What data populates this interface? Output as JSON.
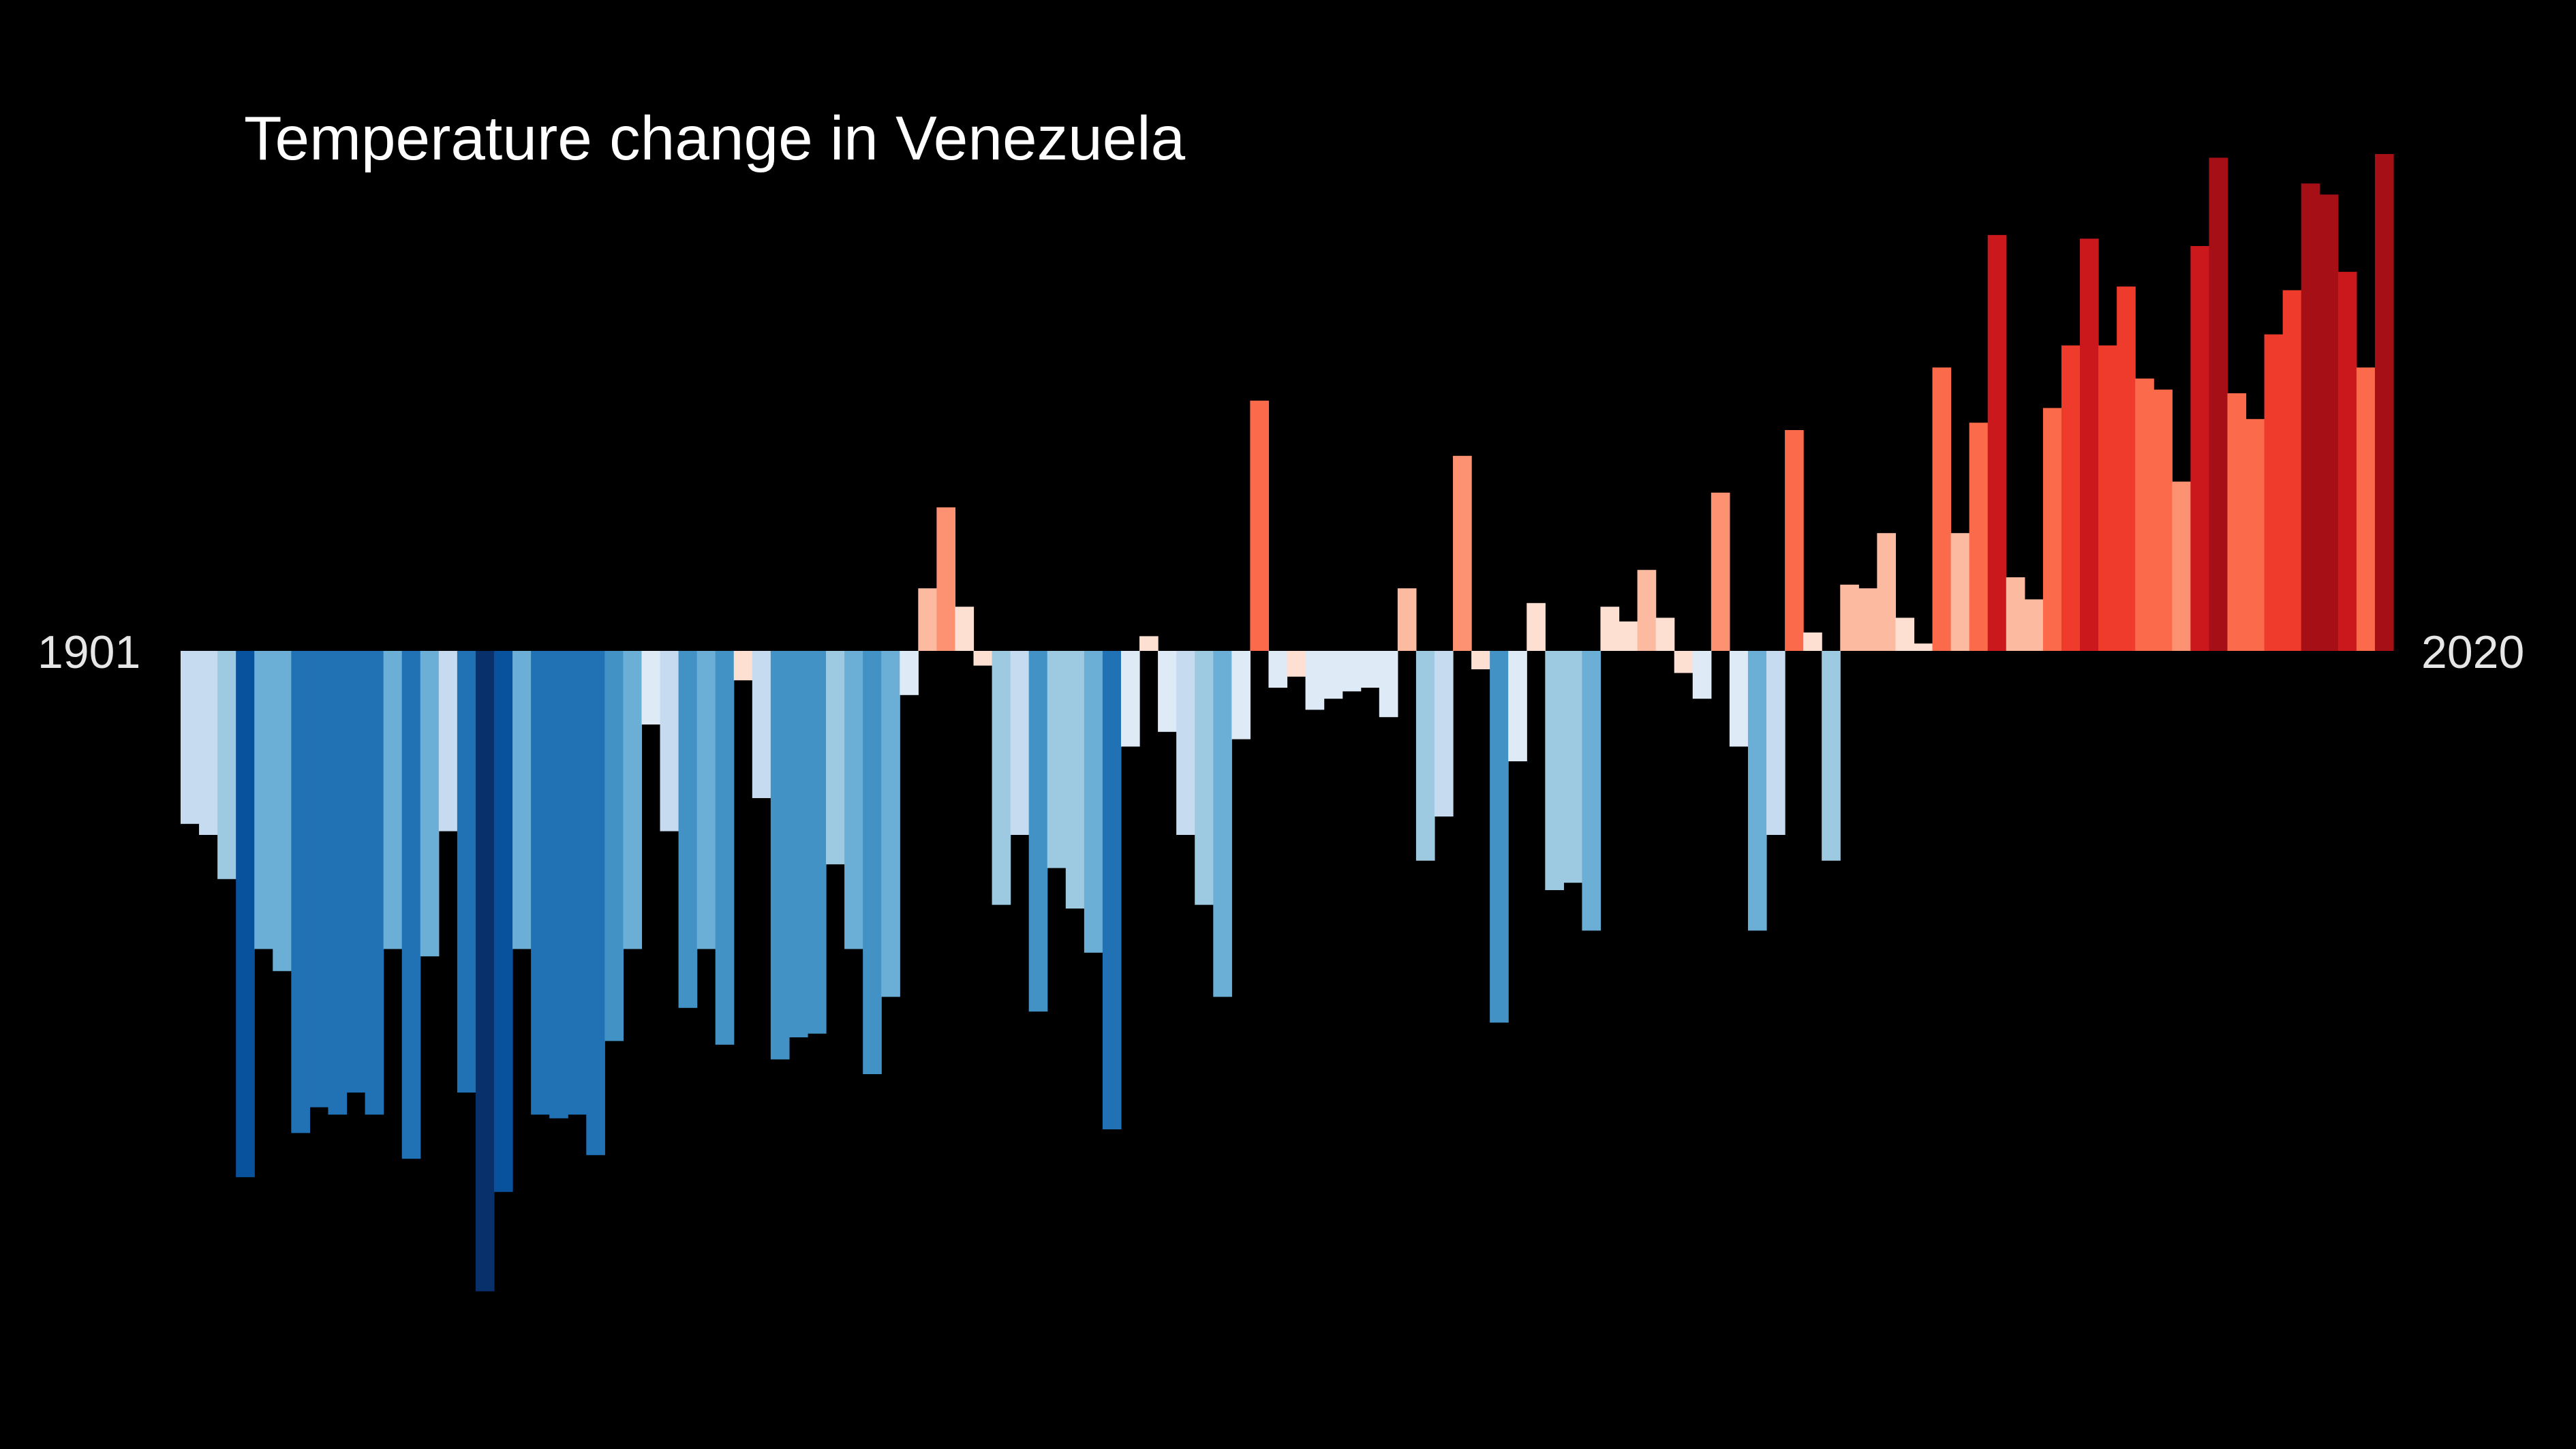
{
  "chart_data": {
    "type": "bar",
    "title": "Temperature change in Venezuela",
    "start_label": "1901",
    "end_label": "2020",
    "x_start": 1901,
    "x_end": 2020,
    "ylim": [
      -1.74,
      1.35
    ],
    "grid": false,
    "legend": "none",
    "values": [
      -0.47,
      -0.5,
      -0.62,
      -1.43,
      -0.81,
      -0.87,
      -1.31,
      -1.24,
      -1.26,
      -1.2,
      -1.26,
      -0.81,
      -1.38,
      -0.83,
      -0.49,
      -1.2,
      -1.74,
      -1.47,
      -0.81,
      -1.26,
      -1.27,
      -1.26,
      -1.37,
      -1.06,
      -0.81,
      -0.2,
      -0.49,
      -0.97,
      -0.81,
      -1.07,
      -0.08,
      -0.4,
      -1.11,
      -1.05,
      -1.04,
      -0.58,
      -0.81,
      -1.15,
      -0.94,
      -0.12,
      0.17,
      0.39,
      0.12,
      -0.04,
      -0.69,
      -0.5,
      -0.98,
      -0.59,
      -0.7,
      -0.82,
      -1.3,
      -0.26,
      0.04,
      -0.22,
      -0.5,
      -0.69,
      -0.94,
      -0.24,
      0.68,
      -0.1,
      -0.07,
      -0.16,
      -0.13,
      -0.11,
      -0.1,
      -0.18,
      0.17,
      -0.57,
      -0.45,
      0.53,
      -0.05,
      -1.01,
      -0.3,
      0.13,
      -0.65,
      -0.63,
      -0.76,
      0.12,
      0.08,
      0.22,
      0.09,
      -0.06,
      -0.13,
      0.43,
      -0.26,
      -0.76,
      -0.5,
      0.6,
      0.05,
      -0.57,
      0.18,
      0.17,
      0.32,
      0.09,
      0.02,
      0.77,
      0.32,
      0.62,
      1.13,
      0.2,
      0.14,
      0.66,
      0.83,
      1.12,
      0.83,
      0.99,
      0.74,
      0.71,
      0.46,
      1.1,
      1.34,
      0.7,
      0.63,
      0.86,
      0.98,
      1.27,
      1.24,
      1.03,
      0.77,
      1.35
    ]
  },
  "colors": {
    "background": "#000000",
    "scale": [
      "#08306b",
      "#08519c",
      "#2171b5",
      "#4292c6",
      "#6baed6",
      "#9ecae1",
      "#c6dbef",
      "#deebf7",
      "#fee0d2",
      "#fcbba1",
      "#fc9272",
      "#fb6a4a",
      "#ef3b2c",
      "#cb181d",
      "#a50f15"
    ]
  }
}
